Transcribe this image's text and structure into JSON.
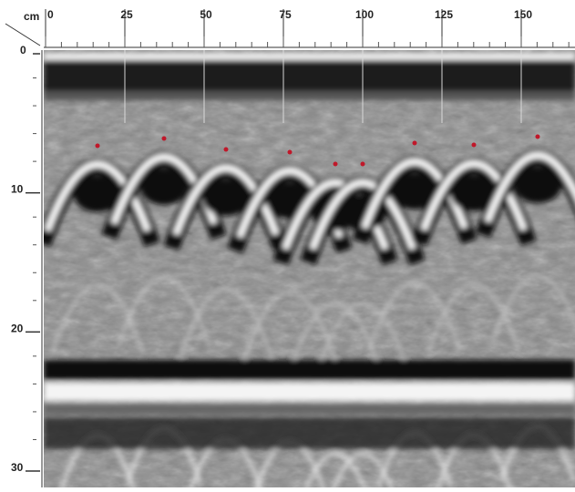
{
  "axis": {
    "unit": "cm",
    "top_ticks": [
      0,
      25,
      50,
      75,
      100,
      125,
      150
    ],
    "left_ticks": [
      0,
      10,
      20,
      30
    ]
  }
}
